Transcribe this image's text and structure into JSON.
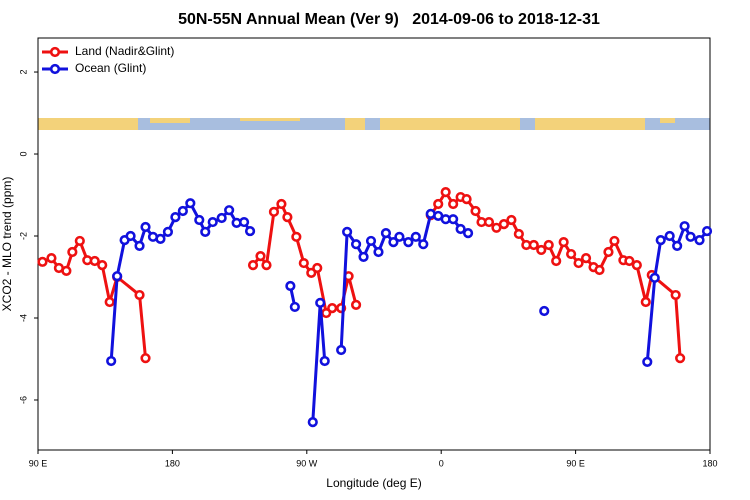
{
  "chart_data": {
    "type": "line",
    "title": "50N-55N Annual Mean (Ver 9)   2014-09-06 to 2018-12-31",
    "x_label": "Longitude (deg E)",
    "y_label": "XCO2 - MLO trend (ppm)",
    "xlim": [
      90,
      540
    ],
    "ylim": [
      -7.22,
      2.83
    ],
    "xticks": [
      {
        "value": 90,
        "label": "90 E"
      },
      180,
      {
        "value": 270,
        "label": "90 W"
      },
      {
        "value": 360,
        "label": "0"
      },
      {
        "value": 450,
        "label": "90 E"
      },
      {
        "value": 540,
        "label": "180"
      }
    ],
    "yticks": [
      -6,
      -4,
      -2,
      0,
      2
    ],
    "legend": "top-left",
    "series": [
      {
        "name": "Land (Nadir&Glint)",
        "color": "#ee1111",
        "x": [
          93,
          99,
          104,
          109,
          113,
          118,
          123,
          128,
          133,
          138,
          143,
          158,
          162,
          198,
          234,
          239,
          243,
          248,
          253,
          257,
          263,
          268,
          273,
          277,
          283,
          287,
          293,
          298,
          303,
          328,
          353,
          358,
          363,
          368,
          373,
          377,
          383,
          387,
          392,
          397,
          402,
          407,
          412,
          417,
          422,
          427,
          432,
          437,
          442,
          447,
          452,
          457,
          462,
          466,
          472,
          476,
          482,
          486,
          491,
          497,
          501,
          517,
          520
        ],
        "values": [
          -2.63,
          -2.54,
          -2.78,
          -2.85,
          -2.39,
          -2.12,
          -2.59,
          -2.61,
          -2.71,
          -3.61,
          -3.0,
          -3.44,
          -4.98,
          null,
          -2.71,
          -2.49,
          -2.71,
          -1.41,
          -1.22,
          -1.54,
          -2.02,
          -2.66,
          -2.9,
          -2.78,
          -3.88,
          -3.76,
          -3.76,
          -2.98,
          -3.68,
          null,
          -1.49,
          -1.22,
          -0.93,
          -1.22,
          -1.05,
          -1.1,
          -1.39,
          -1.66,
          -1.66,
          -1.8,
          -1.71,
          -1.61,
          -1.95,
          -2.22,
          -2.22,
          -2.34,
          -2.22,
          -2.61,
          -2.15,
          -2.44,
          -2.66,
          -2.54,
          -2.76,
          -2.83,
          -2.39,
          -2.12,
          -2.59,
          -2.61,
          -2.71,
          -3.61,
          -2.95,
          -3.44,
          -4.98
        ]
      },
      {
        "name": "Ocean (Glint)",
        "color": "#1111dd",
        "x": [
          139,
          143,
          148,
          152,
          158,
          162,
          167,
          172,
          177,
          182,
          187,
          192,
          198,
          202,
          207,
          213,
          218,
          223,
          228,
          232,
          260,
          259,
          262,
          267,
          274,
          279,
          282,
          287,
          293,
          297,
          303,
          308,
          313,
          318,
          323,
          328,
          332,
          338,
          343,
          348,
          353,
          358,
          363,
          368,
          373,
          378,
          400,
          429,
          480,
          498,
          503,
          507,
          513,
          518,
          523,
          527,
          533,
          538
        ],
        "values": [
          -5.05,
          -2.98,
          -2.1,
          -2.0,
          -2.24,
          -1.78,
          -2.02,
          -2.07,
          -1.9,
          -1.54,
          -1.39,
          -1.2,
          -1.61,
          -1.9,
          -1.66,
          -1.56,
          -1.37,
          -1.68,
          -1.66,
          -1.88,
          null,
          -3.22,
          -3.73,
          null,
          -6.54,
          -3.63,
          -5.05,
          null,
          -4.78,
          -1.9,
          -2.2,
          -2.51,
          -2.12,
          -2.39,
          -1.93,
          -2.15,
          -2.02,
          -2.15,
          -2.02,
          -2.2,
          -1.46,
          -1.51,
          -1.59,
          -1.59,
          -1.83,
          -1.93,
          null,
          -3.83,
          null,
          -5.07,
          -3.02,
          -2.1,
          -2.0,
          -2.24,
          -1.76,
          -2.02,
          -2.1,
          -1.88
        ]
      }
    ]
  }
}
